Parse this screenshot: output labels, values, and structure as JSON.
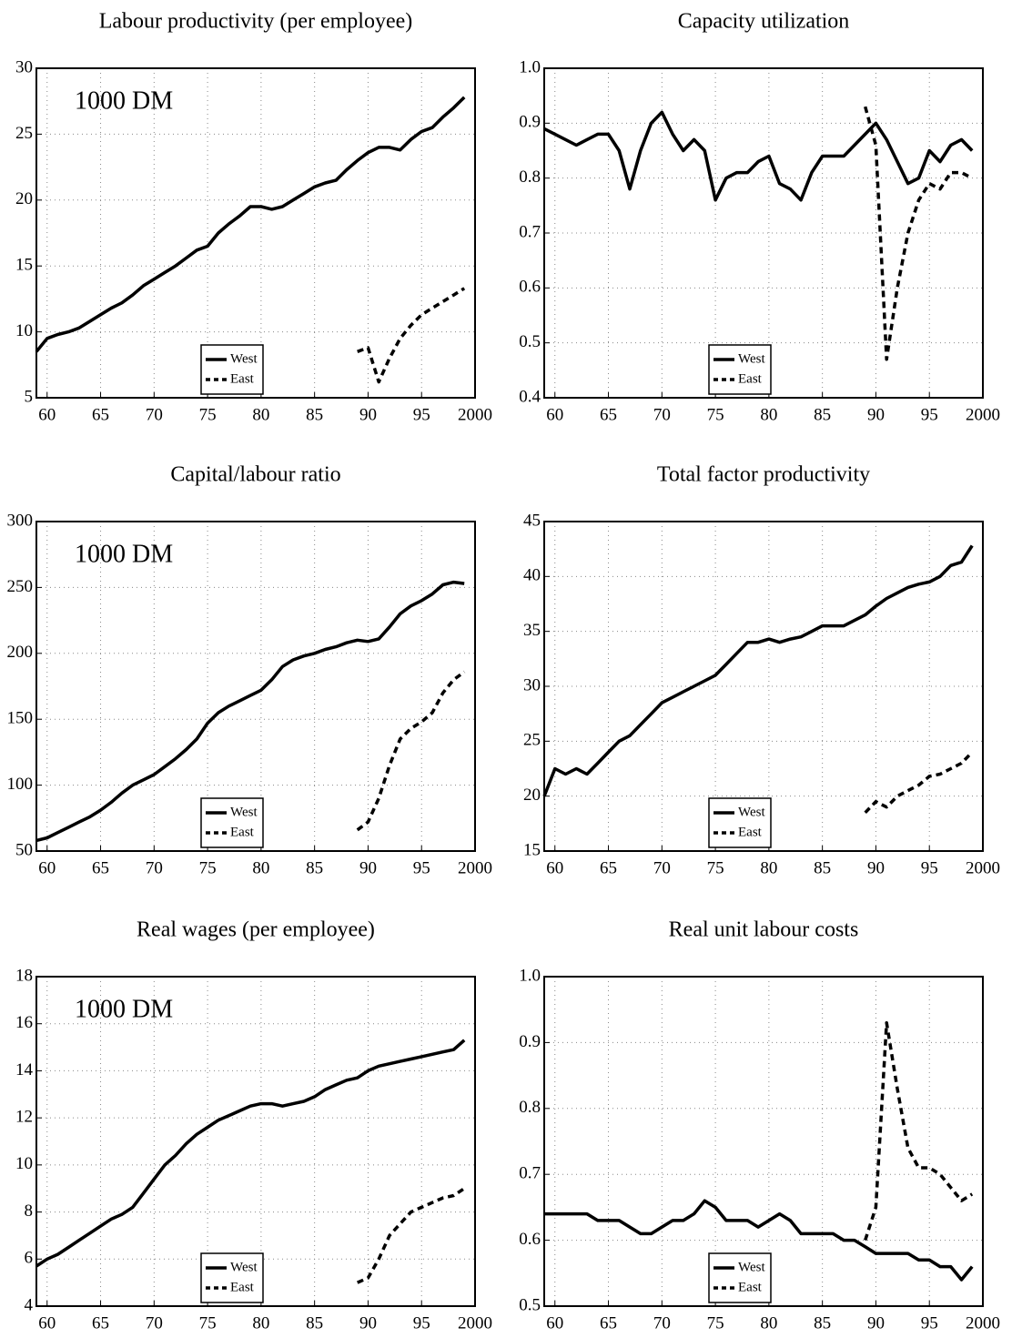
{
  "chart_data": [
    {
      "type": "line",
      "title": "Labour productivity (per employee)",
      "annotation": "1000 DM",
      "grid": true,
      "legend": "lower center",
      "x": [
        1959,
        1960,
        1961,
        1962,
        1963,
        1964,
        1965,
        1966,
        1967,
        1968,
        1969,
        1970,
        1971,
        1972,
        1973,
        1974,
        1975,
        1976,
        1977,
        1978,
        1979,
        1980,
        1981,
        1982,
        1983,
        1984,
        1985,
        1986,
        1987,
        1988,
        1989,
        1990,
        1991,
        1992,
        1993,
        1994,
        1995,
        1996,
        1997,
        1998,
        1999
      ],
      "xlim": [
        1959,
        2000
      ],
      "xticks": [
        {
          "value": 1960,
          "label": "60"
        },
        {
          "value": 1965,
          "label": "65"
        },
        {
          "value": 1970,
          "label": "70"
        },
        {
          "value": 1975,
          "label": "75"
        },
        {
          "value": 1980,
          "label": "80"
        },
        {
          "value": 1985,
          "label": "85"
        },
        {
          "value": 1990,
          "label": "90"
        },
        {
          "value": 1995,
          "label": "95"
        },
        2000
      ],
      "ylim": [
        5,
        30
      ],
      "yticks": [
        5,
        10,
        15,
        20,
        25,
        30
      ],
      "series": [
        {
          "name": "West",
          "color": "#000000",
          "line_style": "solid",
          "values": [
            8.5,
            9.5,
            9.8,
            10,
            10.3,
            10.8,
            11.3,
            11.8,
            12.2,
            12.8,
            13.5,
            14,
            14.5,
            15,
            15.6,
            16.2,
            16.5,
            17.5,
            18.2,
            18.8,
            19.5,
            19.5,
            19.3,
            19.5,
            20,
            20.5,
            21,
            21.3,
            21.5,
            22.3,
            23,
            23.6,
            24,
            24,
            23.8,
            24.6,
            25.2,
            25.5,
            26.3,
            27,
            27.8
          ]
        },
        {
          "name": "East",
          "color": "#000000",
          "line_style": "dashed",
          "values": [
            null,
            null,
            null,
            null,
            null,
            null,
            null,
            null,
            null,
            null,
            null,
            null,
            null,
            null,
            null,
            null,
            null,
            null,
            null,
            null,
            null,
            null,
            null,
            null,
            null,
            null,
            null,
            null,
            null,
            null,
            8.5,
            8.8,
            6.2,
            8,
            9.5,
            10.5,
            11.3,
            11.8,
            12.3,
            12.8,
            13.3
          ]
        }
      ]
    },
    {
      "type": "line",
      "title": "Capacity utilization",
      "grid": true,
      "legend": "lower center",
      "x": [
        1959,
        1960,
        1961,
        1962,
        1963,
        1964,
        1965,
        1966,
        1967,
        1968,
        1969,
        1970,
        1971,
        1972,
        1973,
        1974,
        1975,
        1976,
        1977,
        1978,
        1979,
        1980,
        1981,
        1982,
        1983,
        1984,
        1985,
        1986,
        1987,
        1988,
        1989,
        1990,
        1991,
        1992,
        1993,
        1994,
        1995,
        1996,
        1997,
        1998,
        1999
      ],
      "xlim": [
        1959,
        2000
      ],
      "xticks": [
        {
          "value": 1960,
          "label": "60"
        },
        {
          "value": 1965,
          "label": "65"
        },
        {
          "value": 1970,
          "label": "70"
        },
        {
          "value": 1975,
          "label": "75"
        },
        {
          "value": 1980,
          "label": "80"
        },
        {
          "value": 1985,
          "label": "85"
        },
        {
          "value": 1990,
          "label": "90"
        },
        {
          "value": 1995,
          "label": "95"
        },
        2000
      ],
      "ylim": [
        0.4,
        1.0
      ],
      "yticks": [
        0.4,
        0.5,
        0.6,
        0.7,
        0.8,
        0.9,
        {
          "value": 1.0,
          "label": "1.0"
        }
      ],
      "series": [
        {
          "name": "West",
          "color": "#000000",
          "line_style": "solid",
          "values": [
            0.89,
            0.88,
            0.87,
            0.86,
            0.87,
            0.88,
            0.88,
            0.85,
            0.78,
            0.85,
            0.9,
            0.92,
            0.88,
            0.85,
            0.87,
            0.85,
            0.76,
            0.8,
            0.81,
            0.81,
            0.83,
            0.84,
            0.79,
            0.78,
            0.76,
            0.81,
            0.84,
            0.84,
            0.84,
            0.86,
            0.88,
            0.9,
            0.87,
            0.83,
            0.79,
            0.8,
            0.85,
            0.83,
            0.86,
            0.87,
            0.85
          ]
        },
        {
          "name": "East",
          "color": "#000000",
          "line_style": "dashed",
          "values": [
            null,
            null,
            null,
            null,
            null,
            null,
            null,
            null,
            null,
            null,
            null,
            null,
            null,
            null,
            null,
            null,
            null,
            null,
            null,
            null,
            null,
            null,
            null,
            null,
            null,
            null,
            null,
            null,
            null,
            null,
            0.93,
            0.86,
            0.47,
            0.6,
            0.7,
            0.76,
            0.79,
            0.78,
            0.81,
            0.81,
            0.8
          ]
        }
      ]
    },
    {
      "type": "line",
      "title": "Capital/labour ratio",
      "annotation": "1000 DM",
      "grid": true,
      "legend": "lower center",
      "x": [
        1959,
        1960,
        1961,
        1962,
        1963,
        1964,
        1965,
        1966,
        1967,
        1968,
        1969,
        1970,
        1971,
        1972,
        1973,
        1974,
        1975,
        1976,
        1977,
        1978,
        1979,
        1980,
        1981,
        1982,
        1983,
        1984,
        1985,
        1986,
        1987,
        1988,
        1989,
        1990,
        1991,
        1992,
        1993,
        1994,
        1995,
        1996,
        1997,
        1998,
        1999
      ],
      "xlim": [
        1959,
        2000
      ],
      "xticks": [
        {
          "value": 1960,
          "label": "60"
        },
        {
          "value": 1965,
          "label": "65"
        },
        {
          "value": 1970,
          "label": "70"
        },
        {
          "value": 1975,
          "label": "75"
        },
        {
          "value": 1980,
          "label": "80"
        },
        {
          "value": 1985,
          "label": "85"
        },
        {
          "value": 1990,
          "label": "90"
        },
        {
          "value": 1995,
          "label": "95"
        },
        2000
      ],
      "ylim": [
        50,
        300
      ],
      "yticks": [
        50,
        100,
        150,
        200,
        250,
        300
      ],
      "series": [
        {
          "name": "West",
          "color": "#000000",
          "line_style": "solid",
          "values": [
            58,
            60,
            64,
            68,
            72,
            76,
            81,
            87,
            94,
            100,
            104,
            108,
            114,
            120,
            127,
            135,
            147,
            155,
            160,
            164,
            168,
            172,
            180,
            190,
            195,
            198,
            200,
            203,
            205,
            208,
            210,
            209,
            211,
            220,
            230,
            236,
            240,
            245,
            252,
            254,
            253
          ]
        },
        {
          "name": "East",
          "color": "#000000",
          "line_style": "dashed",
          "values": [
            null,
            null,
            null,
            null,
            null,
            null,
            null,
            null,
            null,
            null,
            null,
            null,
            null,
            null,
            null,
            null,
            null,
            null,
            null,
            null,
            null,
            null,
            null,
            null,
            null,
            null,
            null,
            null,
            null,
            null,
            66,
            72,
            90,
            115,
            135,
            143,
            148,
            155,
            170,
            180,
            186
          ]
        }
      ]
    },
    {
      "type": "line",
      "title": "Total factor productivity",
      "grid": true,
      "legend": "lower center",
      "x": [
        1959,
        1960,
        1961,
        1962,
        1963,
        1964,
        1965,
        1966,
        1967,
        1968,
        1969,
        1970,
        1971,
        1972,
        1973,
        1974,
        1975,
        1976,
        1977,
        1978,
        1979,
        1980,
        1981,
        1982,
        1983,
        1984,
        1985,
        1986,
        1987,
        1988,
        1989,
        1990,
        1991,
        1992,
        1993,
        1994,
        1995,
        1996,
        1997,
        1998,
        1999
      ],
      "xlim": [
        1959,
        2000
      ],
      "xticks": [
        {
          "value": 1960,
          "label": "60"
        },
        {
          "value": 1965,
          "label": "65"
        },
        {
          "value": 1970,
          "label": "70"
        },
        {
          "value": 1975,
          "label": "75"
        },
        {
          "value": 1980,
          "label": "80"
        },
        {
          "value": 1985,
          "label": "85"
        },
        {
          "value": 1990,
          "label": "90"
        },
        {
          "value": 1995,
          "label": "95"
        },
        2000
      ],
      "ylim": [
        15,
        45
      ],
      "yticks": [
        15,
        20,
        25,
        30,
        35,
        40,
        45
      ],
      "series": [
        {
          "name": "West",
          "color": "#000000",
          "line_style": "solid",
          "values": [
            20,
            22.5,
            22,
            22.5,
            22,
            23,
            24,
            25,
            25.5,
            26.5,
            27.5,
            28.5,
            29,
            29.5,
            30,
            30.5,
            31,
            32,
            33,
            34,
            34,
            34.3,
            34,
            34.3,
            34.5,
            35,
            35.5,
            35.5,
            35.5,
            36,
            36.5,
            37.3,
            38,
            38.5,
            39,
            39.3,
            39.5,
            40,
            41,
            41.3,
            42.8
          ]
        },
        {
          "name": "East",
          "color": "#000000",
          "line_style": "dashed",
          "values": [
            null,
            null,
            null,
            null,
            null,
            null,
            null,
            null,
            null,
            null,
            null,
            null,
            null,
            null,
            null,
            null,
            null,
            null,
            null,
            null,
            null,
            null,
            null,
            null,
            null,
            null,
            null,
            null,
            null,
            null,
            18.5,
            19.5,
            19,
            20,
            20.5,
            21,
            21.8,
            22,
            22.5,
            23,
            24
          ]
        }
      ]
    },
    {
      "type": "line",
      "title": "Real wages (per employee)",
      "annotation": "1000 DM",
      "grid": true,
      "legend": "lower center",
      "x": [
        1959,
        1960,
        1961,
        1962,
        1963,
        1964,
        1965,
        1966,
        1967,
        1968,
        1969,
        1970,
        1971,
        1972,
        1973,
        1974,
        1975,
        1976,
        1977,
        1978,
        1979,
        1980,
        1981,
        1982,
        1983,
        1984,
        1985,
        1986,
        1987,
        1988,
        1989,
        1990,
        1991,
        1992,
        1993,
        1994,
        1995,
        1996,
        1997,
        1998,
        1999
      ],
      "xlim": [
        1959,
        2000
      ],
      "xticks": [
        {
          "value": 1960,
          "label": "60"
        },
        {
          "value": 1965,
          "label": "65"
        },
        {
          "value": 1970,
          "label": "70"
        },
        {
          "value": 1975,
          "label": "75"
        },
        {
          "value": 1980,
          "label": "80"
        },
        {
          "value": 1985,
          "label": "85"
        },
        {
          "value": 1990,
          "label": "90"
        },
        {
          "value": 1995,
          "label": "95"
        },
        2000
      ],
      "ylim": [
        4,
        18
      ],
      "yticks": [
        4,
        6,
        8,
        10,
        12,
        14,
        16,
        18
      ],
      "series": [
        {
          "name": "West",
          "color": "#000000",
          "line_style": "solid",
          "values": [
            5.7,
            6,
            6.2,
            6.5,
            6.8,
            7.1,
            7.4,
            7.7,
            7.9,
            8.2,
            8.8,
            9.4,
            10,
            10.4,
            10.9,
            11.3,
            11.6,
            11.9,
            12.1,
            12.3,
            12.5,
            12.6,
            12.6,
            12.5,
            12.6,
            12.7,
            12.9,
            13.2,
            13.4,
            13.6,
            13.7,
            14,
            14.2,
            14.3,
            14.4,
            14.5,
            14.6,
            14.7,
            14.8,
            14.9,
            15.3
          ]
        },
        {
          "name": "East",
          "color": "#000000",
          "line_style": "dashed",
          "values": [
            null,
            null,
            null,
            null,
            null,
            null,
            null,
            null,
            null,
            null,
            null,
            null,
            null,
            null,
            null,
            null,
            null,
            null,
            null,
            null,
            null,
            null,
            null,
            null,
            null,
            null,
            null,
            null,
            null,
            null,
            5,
            5.2,
            6,
            7,
            7.5,
            8,
            8.2,
            8.4,
            8.6,
            8.7,
            9
          ]
        }
      ]
    },
    {
      "type": "line",
      "title": "Real unit labour costs",
      "grid": true,
      "legend": "lower center",
      "x": [
        1959,
        1960,
        1961,
        1962,
        1963,
        1964,
        1965,
        1966,
        1967,
        1968,
        1969,
        1970,
        1971,
        1972,
        1973,
        1974,
        1975,
        1976,
        1977,
        1978,
        1979,
        1980,
        1981,
        1982,
        1983,
        1984,
        1985,
        1986,
        1987,
        1988,
        1989,
        1990,
        1991,
        1992,
        1993,
        1994,
        1995,
        1996,
        1997,
        1998,
        1999
      ],
      "xlim": [
        1959,
        2000
      ],
      "xticks": [
        {
          "value": 1960,
          "label": "60"
        },
        {
          "value": 1965,
          "label": "65"
        },
        {
          "value": 1970,
          "label": "70"
        },
        {
          "value": 1975,
          "label": "75"
        },
        {
          "value": 1980,
          "label": "80"
        },
        {
          "value": 1985,
          "label": "85"
        },
        {
          "value": 1990,
          "label": "90"
        },
        {
          "value": 1995,
          "label": "95"
        },
        2000
      ],
      "ylim": [
        0.5,
        1.0
      ],
      "yticks": [
        0.5,
        0.6,
        0.7,
        0.8,
        0.9,
        {
          "value": 1.0,
          "label": "1.0"
        }
      ],
      "series": [
        {
          "name": "West",
          "color": "#000000",
          "line_style": "solid",
          "values": [
            0.64,
            0.64,
            0.64,
            0.64,
            0.64,
            0.63,
            0.63,
            0.63,
            0.62,
            0.61,
            0.61,
            0.62,
            0.63,
            0.63,
            0.64,
            0.66,
            0.65,
            0.63,
            0.63,
            0.63,
            0.62,
            0.63,
            0.64,
            0.63,
            0.61,
            0.61,
            0.61,
            0.61,
            0.6,
            0.6,
            0.59,
            0.58,
            0.58,
            0.58,
            0.58,
            0.57,
            0.57,
            0.56,
            0.56,
            0.54,
            0.56
          ]
        },
        {
          "name": "East",
          "color": "#000000",
          "line_style": "dashed",
          "values": [
            null,
            null,
            null,
            null,
            null,
            null,
            null,
            null,
            null,
            null,
            null,
            null,
            null,
            null,
            null,
            null,
            null,
            null,
            null,
            null,
            null,
            null,
            null,
            null,
            null,
            null,
            null,
            null,
            null,
            null,
            0.6,
            0.65,
            0.93,
            0.83,
            0.74,
            0.71,
            0.71,
            0.7,
            0.68,
            0.66,
            0.67
          ]
        }
      ]
    }
  ]
}
